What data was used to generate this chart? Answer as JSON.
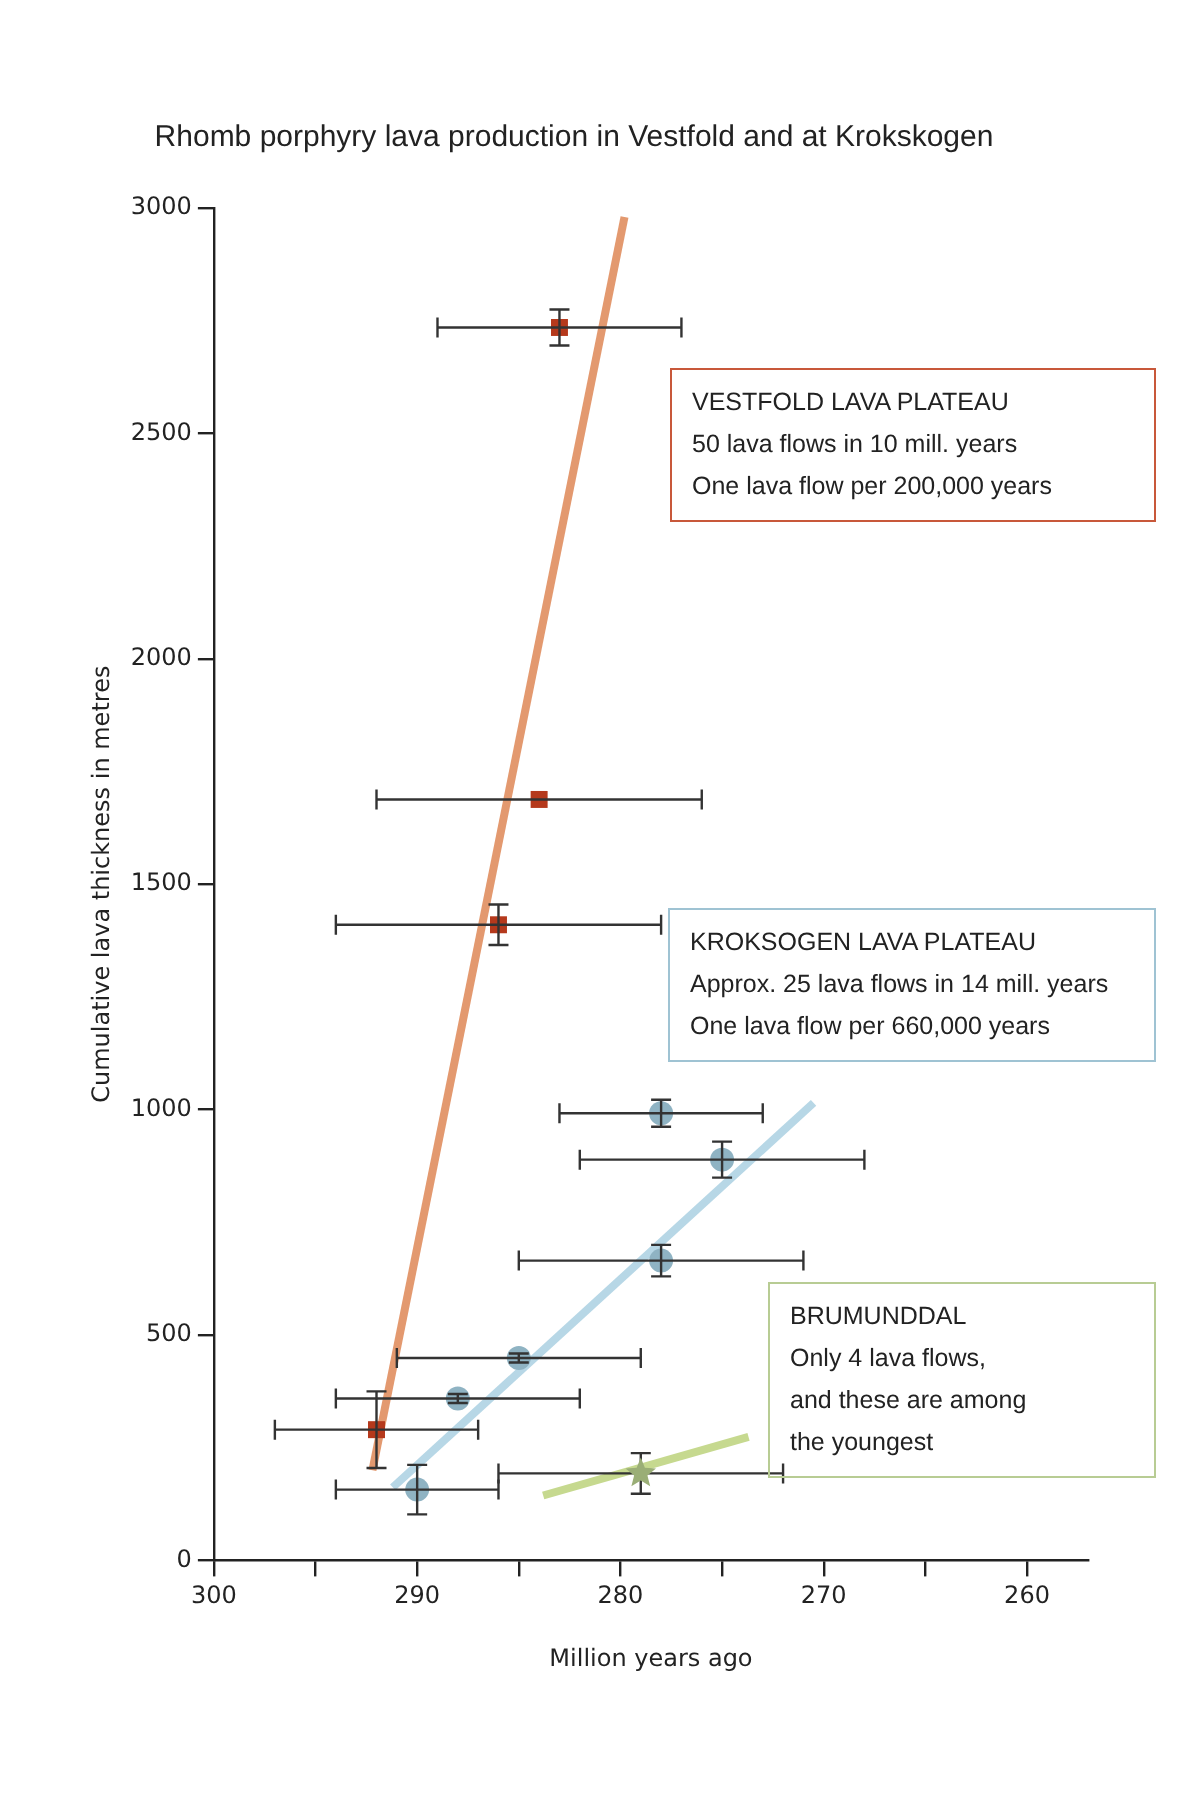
{
  "chart_data": {
    "type": "scatter",
    "title": "Rhomb porphyry lava production in Vestfold and at Krokskogen",
    "xlabel": "Million years ago",
    "ylabel": "Cumulative lava thickness in metres",
    "xlim": [
      300,
      257
    ],
    "ylim": [
      0,
      3000
    ],
    "xticks": [
      300,
      {
        "value": 295,
        "label": null
      },
      290,
      {
        "value": 285,
        "label": null
      },
      280,
      {
        "value": 275,
        "label": null
      },
      270,
      {
        "value": 265,
        "label": null
      },
      260
    ],
    "yticks": [
      0,
      500,
      1000,
      1500,
      2000,
      2500,
      3000
    ],
    "grid": false,
    "legend": false,
    "series": [
      {
        "type": "line",
        "color": "#e3996f",
        "marker": "none",
        "x": [
          292.2,
          279.8
        ],
        "values": [
          200,
          2980
        ]
      },
      {
        "type": "line",
        "color": "#b7d7e6",
        "marker": "none",
        "x": [
          291.2,
          270.5
        ],
        "values": [
          162,
          1015
        ]
      },
      {
        "type": "line",
        "color": "#c6d98f",
        "marker": "none",
        "x": [
          283.8,
          273.7
        ],
        "values": [
          144,
          274
        ]
      },
      {
        "type": "scatter",
        "color": "#b5391c",
        "marker": "square",
        "x": [
          283,
          284,
          286,
          292
        ],
        "values": [
          2735,
          1688,
          1410,
          290
        ],
        "errors": [
          40,
          null,
          45,
          85
        ],
        "xerrors": [
          6,
          8,
          8,
          5
        ]
      },
      {
        "type": "scatter",
        "color": "#8fb3c3",
        "marker": "circle",
        "x": [
          278,
          275,
          278,
          285,
          288,
          290
        ],
        "values": [
          992,
          889,
          665,
          449,
          359,
          157
        ],
        "errors": [
          30,
          40,
          35,
          10,
          10,
          55
        ],
        "xerrors": [
          5,
          7,
          7,
          6,
          6,
          4
        ]
      },
      {
        "type": "scatter",
        "color": "#9aae76",
        "marker": "star",
        "x": [
          279
        ],
        "values": [
          193
        ],
        "errors": [
          45
        ],
        "xerrors": [
          7
        ]
      }
    ],
    "annotations": [
      "VESTFOLD LAVA PLATEAU\n50 lava flows in 10 mill. years\nOne lava flow per 200,000 years",
      "KROKSOGEN LAVA PLATEAU\nApprox. 25 lava flows in 14 mill. years\nOne lava flow per 660,000 years",
      "BRUMUNDDAL\nOnly 4 lava flows,\nand these are among\nthe youngest"
    ]
  }
}
